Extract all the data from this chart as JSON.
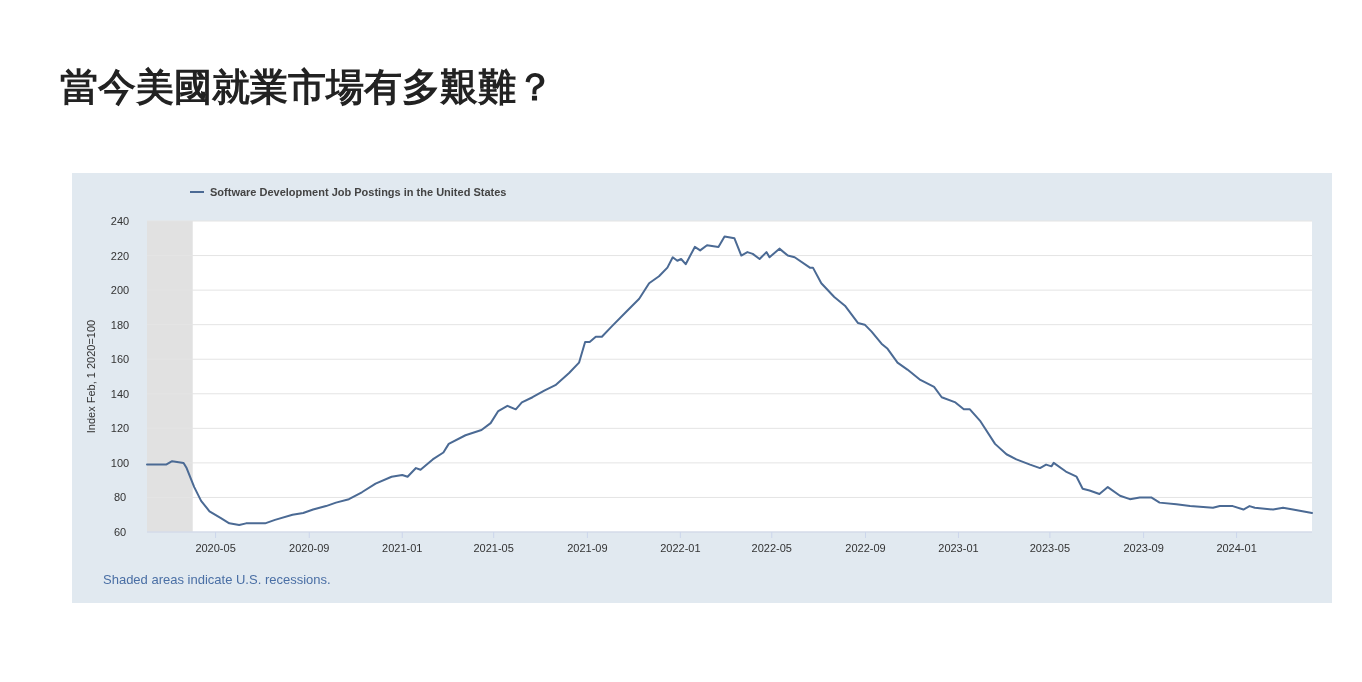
{
  "chart_data": {
    "type": "line",
    "title": "當今美國就業市場有多艱難？",
    "ylabel": "Index Feb, 1 2020=100",
    "annotations": [
      "Shaded areas indicate U.S. recessions."
    ],
    "legend": "top left",
    "grid": "y",
    "x": [
      "2020-02-01",
      "2020-02-10",
      "2020-02-26",
      "2020-03-05",
      "2020-03-20",
      "2020-03-24",
      "2020-04-03",
      "2020-04-12",
      "2020-04-23",
      "2020-05-08",
      "2020-05-19",
      "2020-06-01",
      "2020-06-10",
      "2020-07-05",
      "2020-07-18",
      "2020-08-10",
      "2020-08-24",
      "2020-09-06",
      "2020-09-23",
      "2020-10-06",
      "2020-10-23",
      "2020-11-09",
      "2020-11-27",
      "2020-12-18",
      "2021-01-01",
      "2021-01-08",
      "2021-01-19",
      "2021-01-25",
      "2021-02-10",
      "2021-02-24",
      "2021-03-03",
      "2021-03-25",
      "2021-04-15",
      "2021-04-27",
      "2021-05-07",
      "2021-05-19",
      "2021-05-30",
      "2021-06-07",
      "2021-06-21",
      "2021-07-07",
      "2021-07-21",
      "2021-08-08",
      "2021-08-21",
      "2021-08-29",
      "2021-09-04",
      "2021-09-12",
      "2021-09-20",
      "2021-10-03",
      "2021-10-21",
      "2021-11-08",
      "2021-11-21",
      "2021-12-04",
      "2021-12-15",
      "2021-12-22",
      "2021-12-28",
      "2022-01-02",
      "2022-01-08",
      "2022-01-20",
      "2022-01-27",
      "2022-02-05",
      "2022-02-20",
      "2022-02-28",
      "2022-03-13",
      "2022-03-22",
      "2022-03-30",
      "2022-04-06",
      "2022-04-15",
      "2022-04-24",
      "2022-04-28",
      "2022-05-11",
      "2022-05-22",
      "2022-05-31",
      "2022-06-20",
      "2022-06-24",
      "2022-07-05",
      "2022-07-22",
      "2022-08-05",
      "2022-08-22",
      "2022-08-31",
      "2022-09-09",
      "2022-09-22",
      "2022-09-30",
      "2022-10-13",
      "2022-10-26",
      "2022-11-12",
      "2022-11-30",
      "2022-12-10",
      "2022-12-28",
      "2023-01-08",
      "2023-01-16",
      "2023-01-30",
      "2023-02-18",
      "2023-03-05",
      "2023-03-18",
      "2023-04-05",
      "2023-04-18",
      "2023-04-26",
      "2023-05-03",
      "2023-05-06",
      "2023-05-22",
      "2023-06-05",
      "2023-06-13",
      "2023-06-22",
      "2023-07-05",
      "2023-07-16",
      "2023-08-01",
      "2023-08-14",
      "2023-08-27",
      "2023-09-11",
      "2023-09-22",
      "2023-10-14",
      "2023-11-01",
      "2023-12-01",
      "2023-12-10",
      "2023-12-27",
      "2024-01-10",
      "2024-01-18",
      "2024-01-25",
      "2024-02-18",
      "2024-03-02",
      "2024-03-15",
      "2024-04-09"
    ],
    "series": [
      {
        "name": "Software Development Job Postings in the United States",
        "color": "#4b6a94",
        "values": [
          99,
          99,
          99,
          101,
          100,
          97,
          86,
          78,
          72,
          68,
          65,
          64,
          65,
          65,
          67,
          70,
          71,
          73,
          75,
          77,
          79,
          83,
          88,
          92,
          93,
          92,
          97,
          96,
          102,
          106,
          111,
          116,
          119,
          123,
          130,
          133,
          131,
          135,
          138,
          142,
          145,
          152,
          158,
          170,
          170,
          173,
          173,
          179,
          187,
          195,
          204,
          208,
          213,
          219,
          217,
          218,
          215,
          225,
          223,
          226,
          225,
          231,
          230,
          220,
          222,
          221,
          218,
          222,
          219,
          224,
          220,
          219,
          213,
          213,
          204,
          196,
          191,
          181,
          180,
          176,
          169,
          166,
          158,
          154,
          148,
          144,
          138,
          135,
          131,
          131,
          124,
          111,
          105,
          102,
          99,
          97,
          99,
          98,
          100,
          95,
          92,
          85,
          84,
          82,
          86,
          81,
          79,
          80,
          80,
          77,
          76,
          75,
          74,
          75,
          75,
          73,
          75,
          74,
          73,
          74,
          73,
          71
        ]
      }
    ],
    "xlim": [
      "2020-02-01",
      "2024-04-09"
    ],
    "ylim": [
      60,
      240
    ],
    "xticks": [
      "2020-05",
      "2020-09",
      "2021-01",
      "2021-05",
      "2021-09",
      "2022-01",
      "2022-05",
      "2022-09",
      "2023-01",
      "2023-05",
      "2023-09",
      "2024-01"
    ],
    "yticks": [
      60,
      80,
      100,
      120,
      140,
      160,
      180,
      200,
      220,
      240
    ],
    "bands": [
      {
        "axis": "x",
        "from": "2020-02-01",
        "to": "2020-04-01",
        "color": "#e1e1e1"
      }
    ]
  }
}
